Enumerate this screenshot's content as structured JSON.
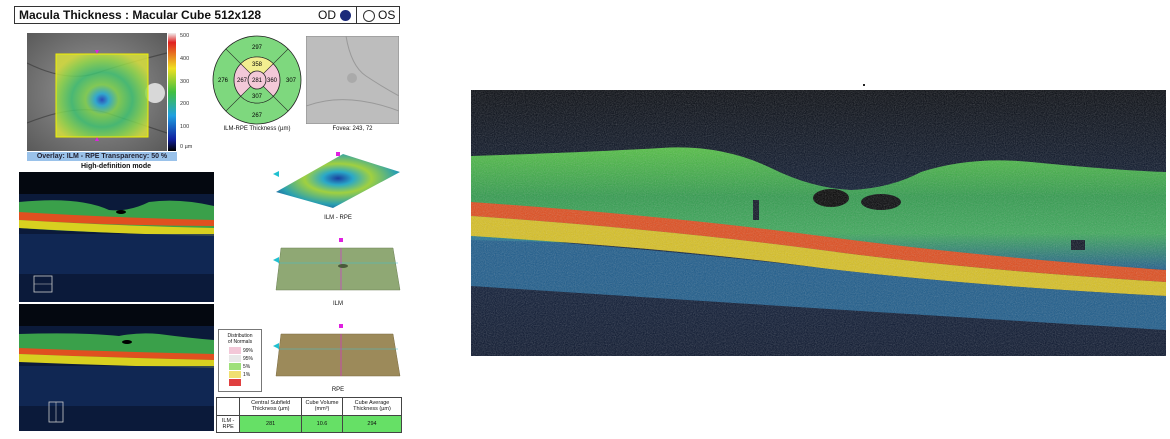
{
  "header": {
    "title": "Macula Thickness : Macular Cube 512x128",
    "od_label": "OD",
    "os_label": "OS"
  },
  "fundus": {
    "overlay_caption": "Overlay: ILM - RPE  Transparency: 50 %",
    "colorbar_ticks": [
      "500",
      "400",
      "300",
      "200",
      "100",
      "0 µm"
    ]
  },
  "etdrs": {
    "center": "281",
    "inner_superior": "358",
    "inner_nasal": "360",
    "inner_inferior": "307",
    "inner_temporal": "267",
    "outer_superior": "297",
    "outer_nasal": "307",
    "outer_inferior": "267",
    "outer_temporal": "276",
    "caption": "ILM-RPE Thickness (µm)"
  },
  "fovea_caption": "Fovea: 243, 72",
  "hd_mode": "High-definition mode",
  "maps3d": [
    {
      "caption": "ILM - RPE"
    },
    {
      "caption": "ILM"
    },
    {
      "caption": "RPE"
    }
  ],
  "legend": {
    "title_line1": "Distribution",
    "title_line2": "of Normals",
    "items": [
      {
        "label": "99%",
        "color": "#f3c8d8"
      },
      {
        "label": "95%",
        "color": "#e8e8e8"
      },
      {
        "label": "5%",
        "color": "#9ee07a"
      },
      {
        "label": "1%",
        "color": "#f0e070"
      },
      {
        "label": "",
        "color": "#e04040"
      }
    ]
  },
  "summary_table": {
    "headers": [
      "",
      "Central Subfield Thickness (µm)",
      "Cube Volume (mm³)",
      "Cube Average Thickness (µm)"
    ],
    "row_label": "ILM - RPE",
    "central_subfield": "281",
    "cube_volume": "10.6",
    "cube_average": "294"
  },
  "colors": {
    "od_selected": "#1b2a7a",
    "overlay_bar": "#9ac2ea",
    "table_green": "#66e066"
  }
}
